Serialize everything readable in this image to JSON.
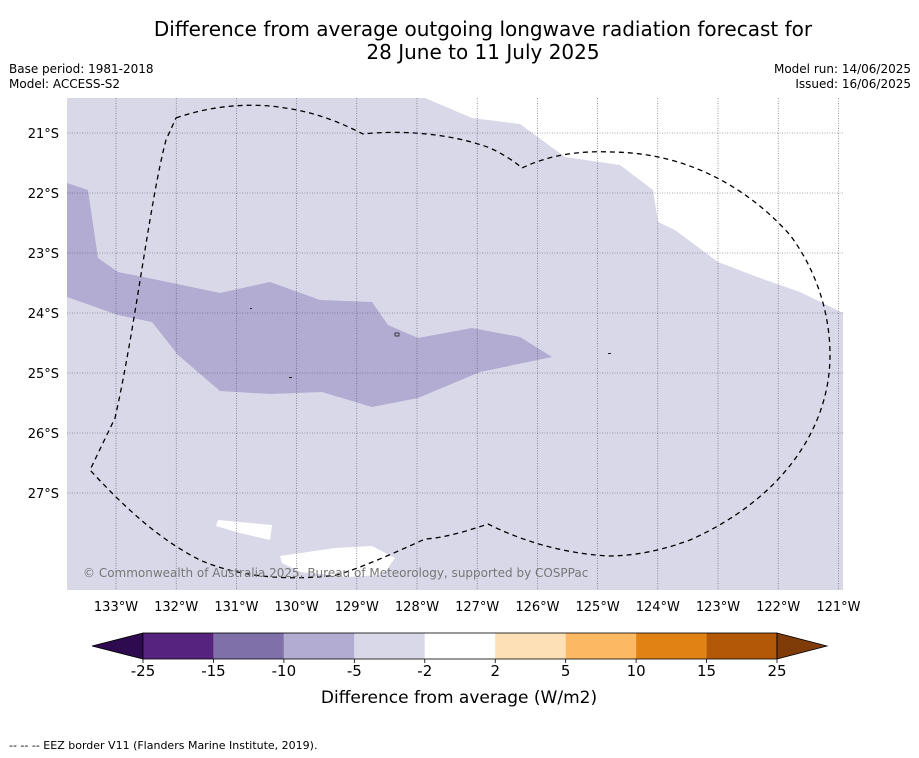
{
  "title_line1": "Difference from average outgoing longwave radiation forecast for",
  "title_line2": "28 June to 11 July 2025",
  "base_period": "Base period: 1981-2018",
  "model": "Model: ACCESS-S2",
  "model_run": "Model run: 14/06/2025",
  "issued": "Issued: 16/06/2025",
  "copyright": "© Commonwealth of Australia 2025, Bureau of Meteorology, supported by COSPPac",
  "lat_labels": [
    "21°S",
    "22°S",
    "23°S",
    "24°S",
    "25°S",
    "26°S",
    "27°S"
  ],
  "lon_labels": [
    "133°W",
    "132°W",
    "131°W",
    "130°W",
    "129°W",
    "128°W",
    "127°W",
    "126°W",
    "125°W",
    "124°W",
    "123°W",
    "122°W",
    "121°W"
  ],
  "colorbar": {
    "ticks": [
      "-25",
      "-15",
      "-10",
      "-5",
      "-2",
      "2",
      "5",
      "10",
      "15",
      "25"
    ],
    "colors": [
      "#2d0b4e",
      "#56247f",
      "#7f70aa",
      "#b2abd2",
      "#d8d8e9",
      "#ffffff",
      "#fee0b6",
      "#fdb863",
      "#e08214",
      "#b35806",
      "#7f3b08"
    ],
    "label": "Difference from average (W/m2)"
  },
  "footer": "--  --  -- EEZ border V11 (Flanders Marine Institute, 2019).",
  "colors": {
    "light": "#d8d8e9",
    "medium": "#b2abd2",
    "grid": "#555566"
  }
}
